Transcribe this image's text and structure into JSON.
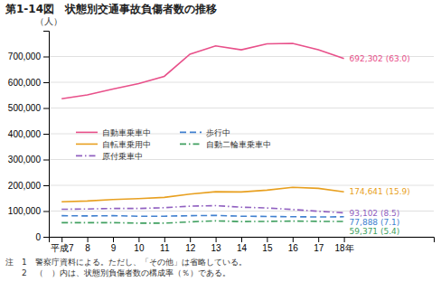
{
  "chart_data": {
    "type": "line",
    "title": "第1-14図　状態別交通事故負傷者数の推移",
    "y_label": "（人）",
    "x": [
      7,
      8,
      9,
      10,
      11,
      12,
      13,
      14,
      15,
      16,
      17,
      18
    ],
    "series": [
      {
        "name": "自動車乗車中",
        "color": "#e8508a",
        "line_style": "solid",
        "values": [
          536000,
          551000,
          574000,
          595000,
          623000,
          709000,
          741000,
          726000,
          749000,
          751000,
          726000,
          692302
        ]
      },
      {
        "name": "自転車乗用中",
        "color": "#e8a020",
        "line_style": "solid",
        "values": [
          136000,
          139000,
          145000,
          148000,
          153000,
          166000,
          175000,
          174000,
          181000,
          192000,
          188000,
          174641
        ]
      },
      {
        "name": "原付乗車中",
        "color": "#9060c0",
        "line_style": "dashdot",
        "values": [
          107000,
          108000,
          110000,
          110000,
          113000,
          119000,
          121000,
          115000,
          112000,
          106000,
          99000,
          93102
        ]
      },
      {
        "name": "歩行中",
        "color": "#4080d0",
        "line_style": "dashed",
        "values": [
          82000,
          81000,
          82000,
          80000,
          80000,
          82000,
          83000,
          80000,
          79000,
          78000,
          77000,
          77888
        ]
      },
      {
        "name": "自動二輪車乗車中",
        "color": "#40a060",
        "line_style": "dashdot",
        "values": [
          55000,
          55000,
          55000,
          53000,
          53000,
          58000,
          62000,
          59000,
          60000,
          61000,
          60000,
          59371
        ]
      }
    ],
    "annotations": [
      {
        "text": "692,302 (63.0)",
        "x": 18,
        "y": 692302,
        "color": "#e8508a"
      },
      {
        "text": "174,641 (15.9)",
        "x": 18,
        "y": 174641,
        "color": "#e8a020"
      },
      {
        "text": "93,102 (8.5)",
        "x": 18,
        "y": 93102,
        "color": "#9060c0"
      },
      {
        "text": "77,888 (7.1)",
        "x": 18,
        "y": 77888,
        "color": "#4080d0"
      },
      {
        "text": "59,371 (5.4)",
        "x": 18,
        "y": 59371,
        "color": "#40a060"
      }
    ],
    "notes": [
      "注　1　警察庁資料による。ただし、「その他」は省略している。",
      "　　2　（　）内は、状態別負傷者数の構成率（％）である。"
    ],
    "xlim": [
      6.5,
      21.5
    ],
    "xticks": [
      {
        "value": 7,
        "label": "平成7"
      },
      8,
      9,
      10,
      11,
      12,
      13,
      14,
      15,
      16,
      17,
      {
        "value": 18,
        "label": "18年"
      }
    ],
    "ylim": [
      0,
      800000
    ],
    "yticks": [
      0,
      {
        "value": 100000,
        "label": "100,000"
      },
      {
        "value": 200000,
        "label": "200,000"
      },
      {
        "value": 300000,
        "label": "300,000"
      },
      {
        "value": 400000,
        "label": "400,000"
      },
      {
        "value": 500000,
        "label": "500,000"
      },
      {
        "value": 600000,
        "label": "600,000"
      },
      {
        "value": 700000,
        "label": "700,000"
      }
    ],
    "grid": true,
    "legend": "left"
  }
}
